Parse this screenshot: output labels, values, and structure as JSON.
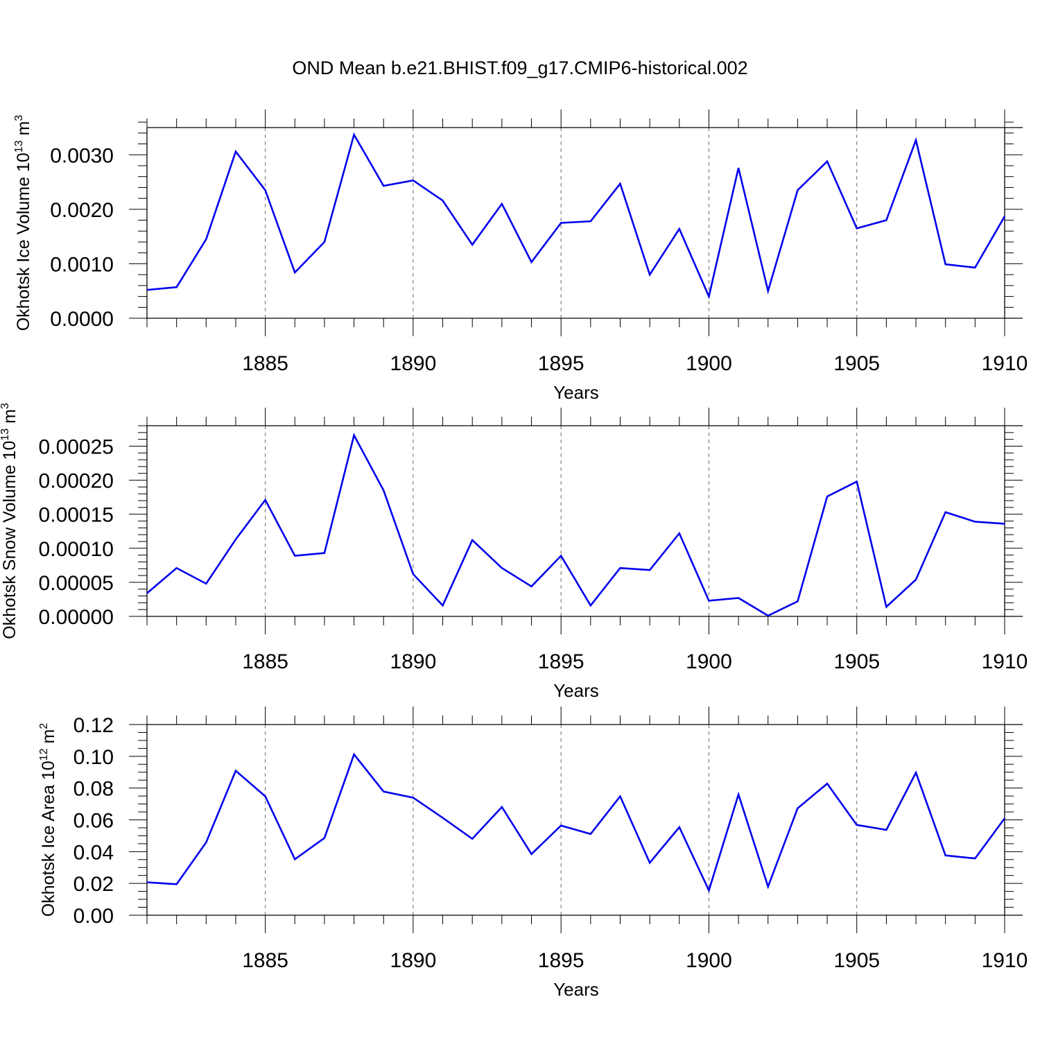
{
  "title": "OND Mean b.e21.BHIST.f09_g17.CMIP6-historical.002",
  "colors": {
    "line": "#0000ee",
    "axis": "#000000",
    "grid": "#666666",
    "background": "#ffffff"
  },
  "chart_data": [
    {
      "type": "line",
      "ylabel": "Okhotsk Ice Volume 10",
      "ylabel_exp": "13",
      "ylabel_unit": " m",
      "ylabel_unit_exp": "3",
      "xlabel": "Years",
      "xlim": [
        1881,
        1910
      ],
      "ylim": [
        0,
        0.0035
      ],
      "x_ticks": [
        1885,
        1890,
        1895,
        1900,
        1905,
        1910
      ],
      "x_tick_labels": [
        "1885",
        "1890",
        "1895",
        "1900",
        "1905",
        "1910"
      ],
      "y_ticks": [
        0,
        0.001,
        0.002,
        0.003
      ],
      "y_tick_labels": [
        "0.0000",
        "0.0010",
        "0.0020",
        "0.0030"
      ],
      "grid": "vertical-dashed",
      "series": [
        {
          "name": "Okhotsk Ice Volume",
          "x": [
            1881,
            1882,
            1883,
            1884,
            1885,
            1886,
            1887,
            1888,
            1889,
            1890,
            1891,
            1892,
            1893,
            1894,
            1895,
            1896,
            1897,
            1898,
            1899,
            1900,
            1901,
            1902,
            1903,
            1904,
            1905,
            1906,
            1907,
            1908,
            1909,
            1910
          ],
          "values": [
            0.00052,
            0.00057,
            0.00145,
            0.00306,
            0.00235,
            0.00084,
            0.0014,
            0.00337,
            0.00243,
            0.00253,
            0.00216,
            0.00135,
            0.0021,
            0.00103,
            0.00175,
            0.00178,
            0.00247,
            0.0008,
            0.00164,
            0.0004,
            0.00276,
            0.0005,
            0.00235,
            0.00288,
            0.00165,
            0.0018,
            0.00327,
            0.00099,
            0.00093,
            0.00187
          ]
        }
      ]
    },
    {
      "type": "line",
      "ylabel": "Okhotsk Snow Volume 10",
      "ylabel_exp": "13",
      "ylabel_unit": " m",
      "ylabel_unit_exp": "3",
      "xlabel": "Years",
      "xlim": [
        1881,
        1910
      ],
      "ylim": [
        0,
        0.00028
      ],
      "x_ticks": [
        1885,
        1890,
        1895,
        1900,
        1905,
        1910
      ],
      "x_tick_labels": [
        "1885",
        "1890",
        "1895",
        "1900",
        "1905",
        "1910"
      ],
      "y_ticks": [
        0,
        5e-05,
        0.0001,
        0.00015,
        0.0002,
        0.00025
      ],
      "y_tick_labels": [
        "0.00000",
        "0.00005",
        "0.00010",
        "0.00015",
        "0.00020",
        "0.00025"
      ],
      "grid": "vertical-dashed",
      "series": [
        {
          "name": "Okhotsk Snow Volume",
          "x": [
            1881,
            1882,
            1883,
            1884,
            1885,
            1886,
            1887,
            1888,
            1889,
            1890,
            1891,
            1892,
            1893,
            1894,
            1895,
            1896,
            1897,
            1898,
            1899,
            1900,
            1901,
            1902,
            1903,
            1904,
            1905,
            1906,
            1907,
            1908,
            1909,
            1910
          ],
          "values": [
            3.4e-05,
            7.1e-05,
            4.8e-05,
            0.000113,
            0.000171,
            8.9e-05,
            9.3e-05,
            0.000266,
            0.000185,
            6.2e-05,
            1.6e-05,
            0.000112,
            7.1e-05,
            4.4e-05,
            8.9e-05,
            1.6e-05,
            7.1e-05,
            6.8e-05,
            0.000122,
            2.3e-05,
            2.7e-05,
            1e-06,
            2.2e-05,
            0.000176,
            0.000198,
            1.4e-05,
            5.4e-05,
            0.000153,
            0.000139,
            0.000136
          ]
        }
      ]
    },
    {
      "type": "line",
      "ylabel": "Okhotsk Ice Area 10",
      "ylabel_exp": "12",
      "ylabel_unit": " m",
      "ylabel_unit_exp": "2",
      "xlabel": "Years",
      "xlim": [
        1881,
        1910
      ],
      "ylim": [
        0,
        0.12
      ],
      "x_ticks": [
        1885,
        1890,
        1895,
        1900,
        1905,
        1910
      ],
      "x_tick_labels": [
        "1885",
        "1890",
        "1895",
        "1900",
        "1905",
        "1910"
      ],
      "y_ticks": [
        0,
        0.02,
        0.04,
        0.06,
        0.08,
        0.1,
        0.12
      ],
      "y_tick_labels": [
        "0.00",
        "0.02",
        "0.04",
        "0.06",
        "0.08",
        "0.10",
        "0.12"
      ],
      "grid": "vertical-dashed",
      "series": [
        {
          "name": "Okhotsk Ice Area",
          "x": [
            1881,
            1882,
            1883,
            1884,
            1885,
            1886,
            1887,
            1888,
            1889,
            1890,
            1891,
            1892,
            1893,
            1894,
            1895,
            1896,
            1897,
            1898,
            1899,
            1900,
            1901,
            1902,
            1903,
            1904,
            1905,
            1906,
            1907,
            1908,
            1909,
            1910
          ],
          "values": [
            0.0207,
            0.0195,
            0.0458,
            0.0909,
            0.0748,
            0.0352,
            0.0486,
            0.1012,
            0.0778,
            0.074,
            0.0613,
            0.0481,
            0.0681,
            0.0385,
            0.0564,
            0.0511,
            0.0748,
            0.033,
            0.0554,
            0.0156,
            0.076,
            0.018,
            0.0673,
            0.0828,
            0.0568,
            0.0537,
            0.0897,
            0.0376,
            0.0357,
            0.061
          ]
        }
      ]
    }
  ]
}
